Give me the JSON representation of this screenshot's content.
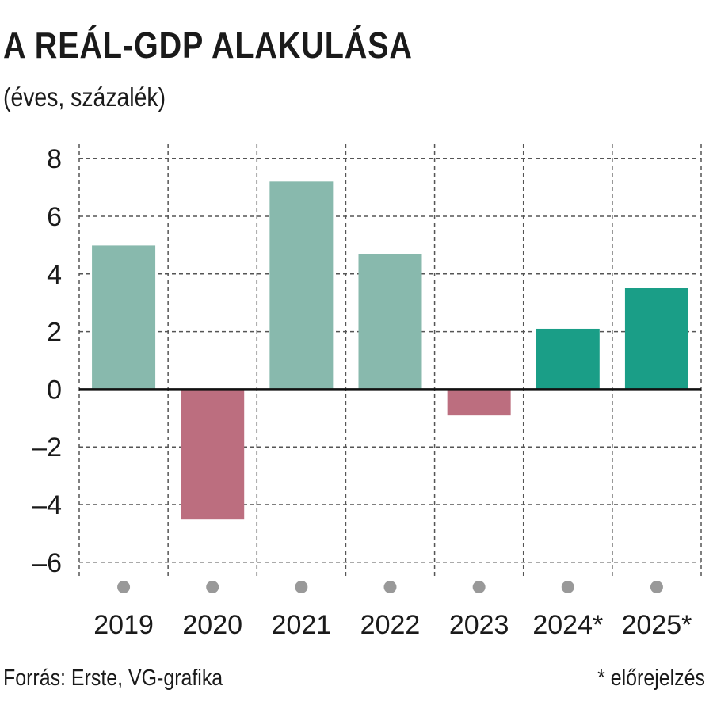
{
  "header": {
    "title": "A REÁL-GDP ALAKULÁSA",
    "subtitle": "(éves, százalék)"
  },
  "footer": {
    "source": "Forrás: Erste, VG-grafika",
    "note": "* előrejelzés"
  },
  "chart_data": {
    "type": "bar",
    "categories": [
      "2019",
      "2020",
      "2021",
      "2022",
      "2023",
      "2024*",
      "2025*"
    ],
    "values": [
      5.0,
      -4.5,
      7.2,
      4.7,
      -0.9,
      2.1,
      3.5
    ],
    "ylim": [
      -6.5,
      8.5
    ],
    "yticks": [
      8,
      6,
      4,
      2,
      0,
      -2,
      -4,
      -6
    ],
    "ytick_labels": [
      "8",
      "6",
      "4",
      "2",
      "0",
      "–2",
      "–4",
      "–6"
    ],
    "grid": true,
    "colors": {
      "actual_positive": "#88b9ad",
      "actual_negative": "#bc6e7f",
      "forecast": "#1a9e87",
      "grid": "#555555",
      "category_dot": "#999999"
    },
    "forecast_categories": [
      "2024*",
      "2025*"
    ]
  }
}
